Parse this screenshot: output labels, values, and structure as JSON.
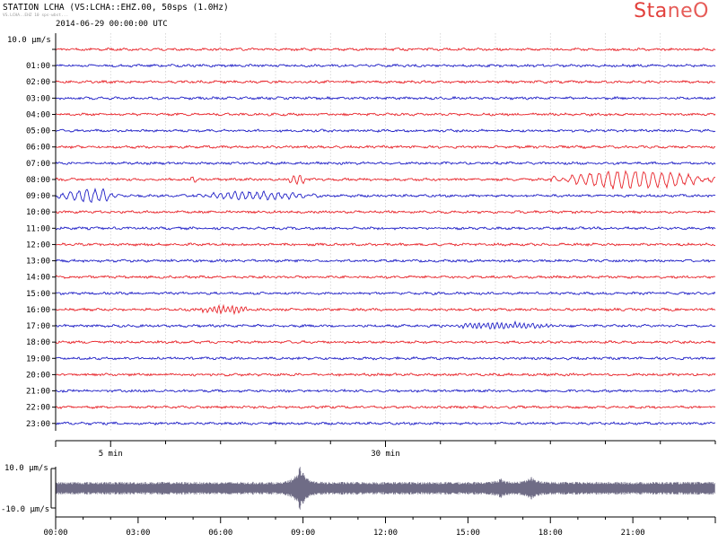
{
  "header": {
    "station": "STATION LCHA (VS:LCHA::EHZ.00, 50sps (1.0Hz)",
    "subline": "VS.LCHA..EHZ 10 sps-wbst...",
    "start_time": "2014-06-29 00:00:00 UTC",
    "logo_part1": "Sta",
    "logo_part2": "neO"
  },
  "colors": {
    "trace_red": "#e8242a",
    "trace_blue": "#1f1fc6",
    "overview": "#6f6c86",
    "grid": "#c9c9c9",
    "axis": "#000000"
  },
  "chart_data": [
    {
      "type": "line",
      "title": "STATION LCHA (VS:LCHA::EHZ.00, 50sps (1.0Hz)",
      "scale_label": "10.0 µm/s",
      "hour_labels": [
        "01:00",
        "02:00",
        "03:00",
        "04:00",
        "05:00",
        "06:00",
        "07:00",
        "08:00",
        "09:00",
        "10:00",
        "11:00",
        "12:00",
        "13:00",
        "14:00",
        "15:00",
        "16:00",
        "17:00",
        "18:00",
        "19:00",
        "20:00",
        "21:00",
        "22:00",
        "23:00"
      ],
      "x_ticks": [
        {
          "label": "5 min",
          "minute": 5
        },
        {
          "label": "30 min",
          "minute": 30
        }
      ],
      "xlim": [
        0,
        60
      ],
      "rows": 24,
      "events": [
        {
          "row": 8,
          "start_min": 12,
          "end_min": 13,
          "amp": 4,
          "period": 8
        },
        {
          "row": 8,
          "start_min": 21,
          "end_min": 23,
          "amp": 7,
          "period": 7
        },
        {
          "row": 8,
          "start_min": 45,
          "end_min": 60,
          "amp": 12,
          "period": 10
        },
        {
          "row": 9,
          "start_min": 0,
          "end_min": 6,
          "amp": 9,
          "period": 9
        },
        {
          "row": 9,
          "start_min": 12,
          "end_min": 24,
          "amp": 5,
          "period": 8
        },
        {
          "row": 16,
          "start_min": 12.5,
          "end_min": 18,
          "amp": 5,
          "period": 5
        },
        {
          "row": 17,
          "start_min": 35,
          "end_min": 46,
          "amp": 4,
          "period": 5
        }
      ]
    },
    {
      "type": "line",
      "title": "",
      "ylabel_top": "10.0 µm/s",
      "ylabel_bottom": "-10.0 µm/s",
      "ylim": [
        -10,
        10
      ],
      "x_tick_labels": [
        "00:00",
        "03:00",
        "06:00",
        "09:00",
        "12:00",
        "15:00",
        "18:00",
        "21:00"
      ],
      "xlim": [
        0,
        24
      ],
      "bursts": [
        {
          "hour": 8.9,
          "amp": 9
        },
        {
          "hour": 17.3,
          "amp": 3
        },
        {
          "hour": 16.2,
          "amp": 2
        }
      ]
    }
  ]
}
